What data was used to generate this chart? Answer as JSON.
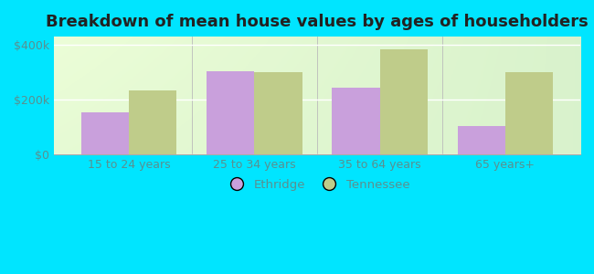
{
  "title": "Breakdown of mean house values by ages of householders",
  "categories": [
    "15 to 24 years",
    "25 to 34 years",
    "35 to 64 years",
    "65 years+"
  ],
  "ethridge_values": [
    155000,
    305000,
    245000,
    105000
  ],
  "tennessee_values": [
    235000,
    300000,
    385000,
    300000
  ],
  "ethridge_color": "#c9a0dc",
  "tennessee_color": "#bfcc8a",
  "background_top": "#dff0c8",
  "background_bottom": "#f5faf0",
  "outer_background": "#00e5ff",
  "ylim": [
    0,
    430000
  ],
  "yticks": [
    0,
    200000,
    400000
  ],
  "ytick_labels": [
    "$0",
    "$200k",
    "$400k"
  ],
  "bar_width": 0.38,
  "legend_ethridge": "Ethridge",
  "legend_tennessee": "Tennessee",
  "title_fontsize": 13,
  "tick_fontsize": 9,
  "tick_color": "#5a9090"
}
